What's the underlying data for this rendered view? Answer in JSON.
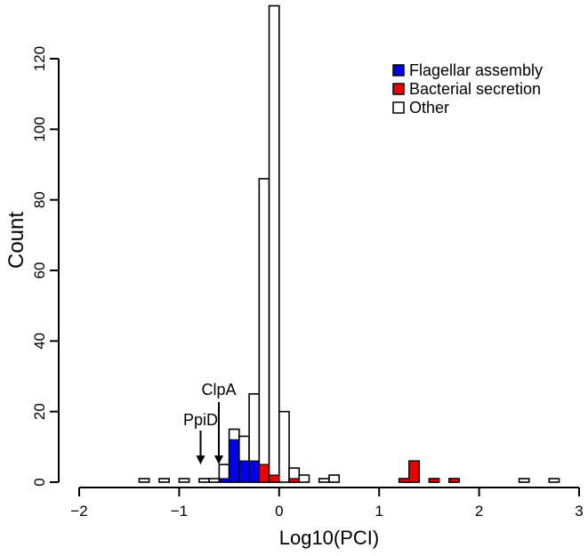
{
  "chart_data": {
    "type": "bar",
    "title": "",
    "xlabel": "Log10(PCI)",
    "ylabel": "Count",
    "xlim": [
      -2,
      3
    ],
    "ylim": [
      0,
      120
    ],
    "xticks": [
      -2,
      -1,
      0,
      1,
      2,
      3
    ],
    "yticks": [
      0,
      20,
      40,
      60,
      80,
      100,
      120
    ],
    "bin_width": 0.1,
    "grid": false,
    "legend_position": "top-right",
    "bars": [
      {
        "x": -1.35,
        "other": 1,
        "secretion": 0,
        "flagellar": 0
      },
      {
        "x": -1.15,
        "other": 1,
        "secretion": 0,
        "flagellar": 0
      },
      {
        "x": -0.95,
        "other": 1,
        "secretion": 0,
        "flagellar": 0
      },
      {
        "x": -0.75,
        "other": 1,
        "secretion": 0,
        "flagellar": 0
      },
      {
        "x": -0.65,
        "other": 1,
        "secretion": 0,
        "flagellar": 0
      },
      {
        "x": -0.55,
        "other": 5,
        "secretion": 0,
        "flagellar": 1
      },
      {
        "x": -0.45,
        "other": 15,
        "secretion": 0,
        "flagellar": 12
      },
      {
        "x": -0.35,
        "other": 13,
        "secretion": 0,
        "flagellar": 6
      },
      {
        "x": -0.25,
        "other": 25,
        "secretion": 0,
        "flagellar": 6
      },
      {
        "x": -0.15,
        "other": 86,
        "secretion": 5,
        "flagellar": 0
      },
      {
        "x": -0.05,
        "other": 135,
        "secretion": 2,
        "flagellar": 0
      },
      {
        "x": 0.05,
        "other": 20,
        "secretion": 0,
        "flagellar": 0
      },
      {
        "x": 0.15,
        "other": 4,
        "secretion": 1,
        "flagellar": 0
      },
      {
        "x": 0.25,
        "other": 2,
        "secretion": 0,
        "flagellar": 0
      },
      {
        "x": 0.45,
        "other": 1,
        "secretion": 0,
        "flagellar": 0
      },
      {
        "x": 0.55,
        "other": 2,
        "secretion": 0,
        "flagellar": 0
      },
      {
        "x": 1.25,
        "other": 1,
        "secretion": 1,
        "flagellar": 0
      },
      {
        "x": 1.35,
        "other": 6,
        "secretion": 6,
        "flagellar": 0
      },
      {
        "x": 1.55,
        "other": 1,
        "secretion": 1,
        "flagellar": 0
      },
      {
        "x": 1.75,
        "other": 1,
        "secretion": 1,
        "flagellar": 0
      },
      {
        "x": 2.45,
        "other": 1,
        "secretion": 0,
        "flagellar": 0
      },
      {
        "x": 2.75,
        "other": 1,
        "secretion": 0,
        "flagellar": 0
      }
    ],
    "series": [
      {
        "key": "flagellar",
        "name": "Flagellar assembly",
        "color": "#0000ee"
      },
      {
        "key": "secretion",
        "name": "Bacterial secretion",
        "color": "#ee0000"
      },
      {
        "key": "other",
        "name": "Other",
        "color": "#ffffff"
      }
    ],
    "annotations": [
      {
        "label": "ClpA",
        "x": -0.55
      },
      {
        "label": "PpiD",
        "x": -0.75
      }
    ]
  }
}
